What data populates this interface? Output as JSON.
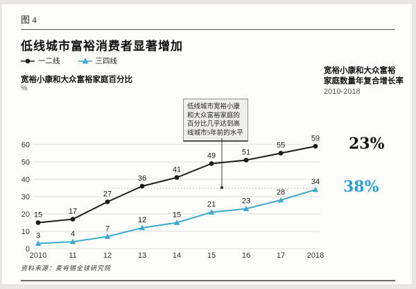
{
  "page": {
    "figure_label": "图 4",
    "title": "低线城市富裕消费者显著增加",
    "source": "资料来源：麦肯锡全球研究院"
  },
  "legend": {
    "items": [
      {
        "label": "一二线",
        "color": "#1c1c1c",
        "marker": "circle"
      },
      {
        "label": "三四线",
        "color": "#3fa9c9",
        "marker": "triangle"
      }
    ]
  },
  "y_axis": {
    "title": "宽裕小康和大众富裕家庭百分比",
    "unit": "%"
  },
  "right_panel": {
    "title_line1": "宽裕小康和大众富裕",
    "title_line2": "家庭数量年复合增长率",
    "period": "2010-2018",
    "cagr": [
      {
        "series": "一二线",
        "value": "23%",
        "color": "#111111"
      },
      {
        "series": "三四线",
        "value": "38%",
        "color": "#2d9fd3"
      }
    ]
  },
  "annotation": {
    "text": "低线城市宽裕小康和大众富裕家庭的百分比几乎达到高线城市5年前的水平"
  },
  "chart_data": {
    "type": "line",
    "title": "低线城市富裕消费者显著增加",
    "x": [
      "2010",
      "11",
      "12",
      "13",
      "14",
      "15",
      "16",
      "17",
      "2018"
    ],
    "series": [
      {
        "name": "一二线",
        "color": "#1c1c1c",
        "marker": "circle",
        "values": [
          15,
          17,
          27,
          36,
          41,
          49,
          51,
          55,
          59
        ]
      },
      {
        "name": "三四线",
        "color": "#3fa9c9",
        "marker": "triangle",
        "values": [
          3,
          4,
          7,
          12,
          15,
          21,
          23,
          28,
          34
        ]
      }
    ],
    "xlabel": "",
    "ylabel": "宽裕小康和大众富裕家庭百分比 (%)",
    "ylim": [
      0,
      60
    ],
    "yticks": [
      0,
      10,
      20,
      30,
      40,
      50,
      60
    ],
    "grid": true,
    "legend_position": "top-left"
  }
}
